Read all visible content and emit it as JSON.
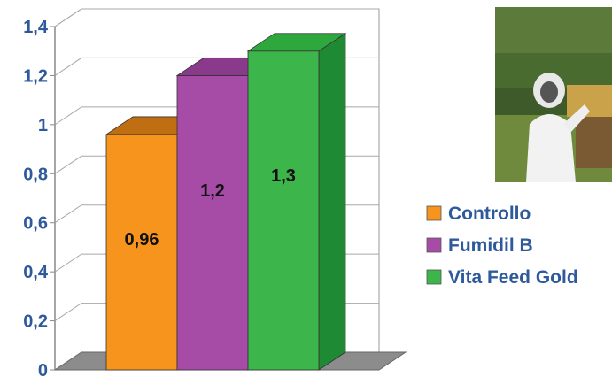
{
  "chart_data": {
    "type": "bar",
    "categories": [
      "Controllo",
      "Fumidil B",
      "Vita Feed Gold"
    ],
    "values": [
      0.96,
      1.2,
      1.3
    ],
    "data_labels": [
      "0,96",
      "1,2",
      "1,3"
    ],
    "ylim": [
      0,
      1.4
    ],
    "yticks": [
      0,
      0.2,
      0.4,
      0.6,
      0.8,
      1,
      1.2,
      1.4
    ],
    "ytick_labels": [
      "0",
      "0,2",
      "0,4",
      "0,6",
      "0,8",
      "1",
      "1,2",
      "1,4"
    ],
    "grid": true,
    "legend": {
      "placement": "right",
      "entries": [
        {
          "label": "Controllo",
          "color": "#f7941d"
        },
        {
          "label": "Fumidil B",
          "color": "#a64ca6"
        },
        {
          "label": "Vita Feed Gold",
          "color": "#3cb54a"
        }
      ]
    },
    "colors": {
      "Controllo": {
        "front": "#f7941d",
        "top": "#c06e12",
        "side": "#b86412"
      },
      "Fumidil B": {
        "front": "#a64ca6",
        "top": "#8a3a8a",
        "side": "#7a2f7a"
      },
      "Vita Feed Gold": {
        "front": "#3cb54a",
        "top": "#2ea83c",
        "side": "#1e8a34"
      }
    }
  },
  "photo": {
    "subject": "beekeeper-inspecting-hive-frame"
  }
}
